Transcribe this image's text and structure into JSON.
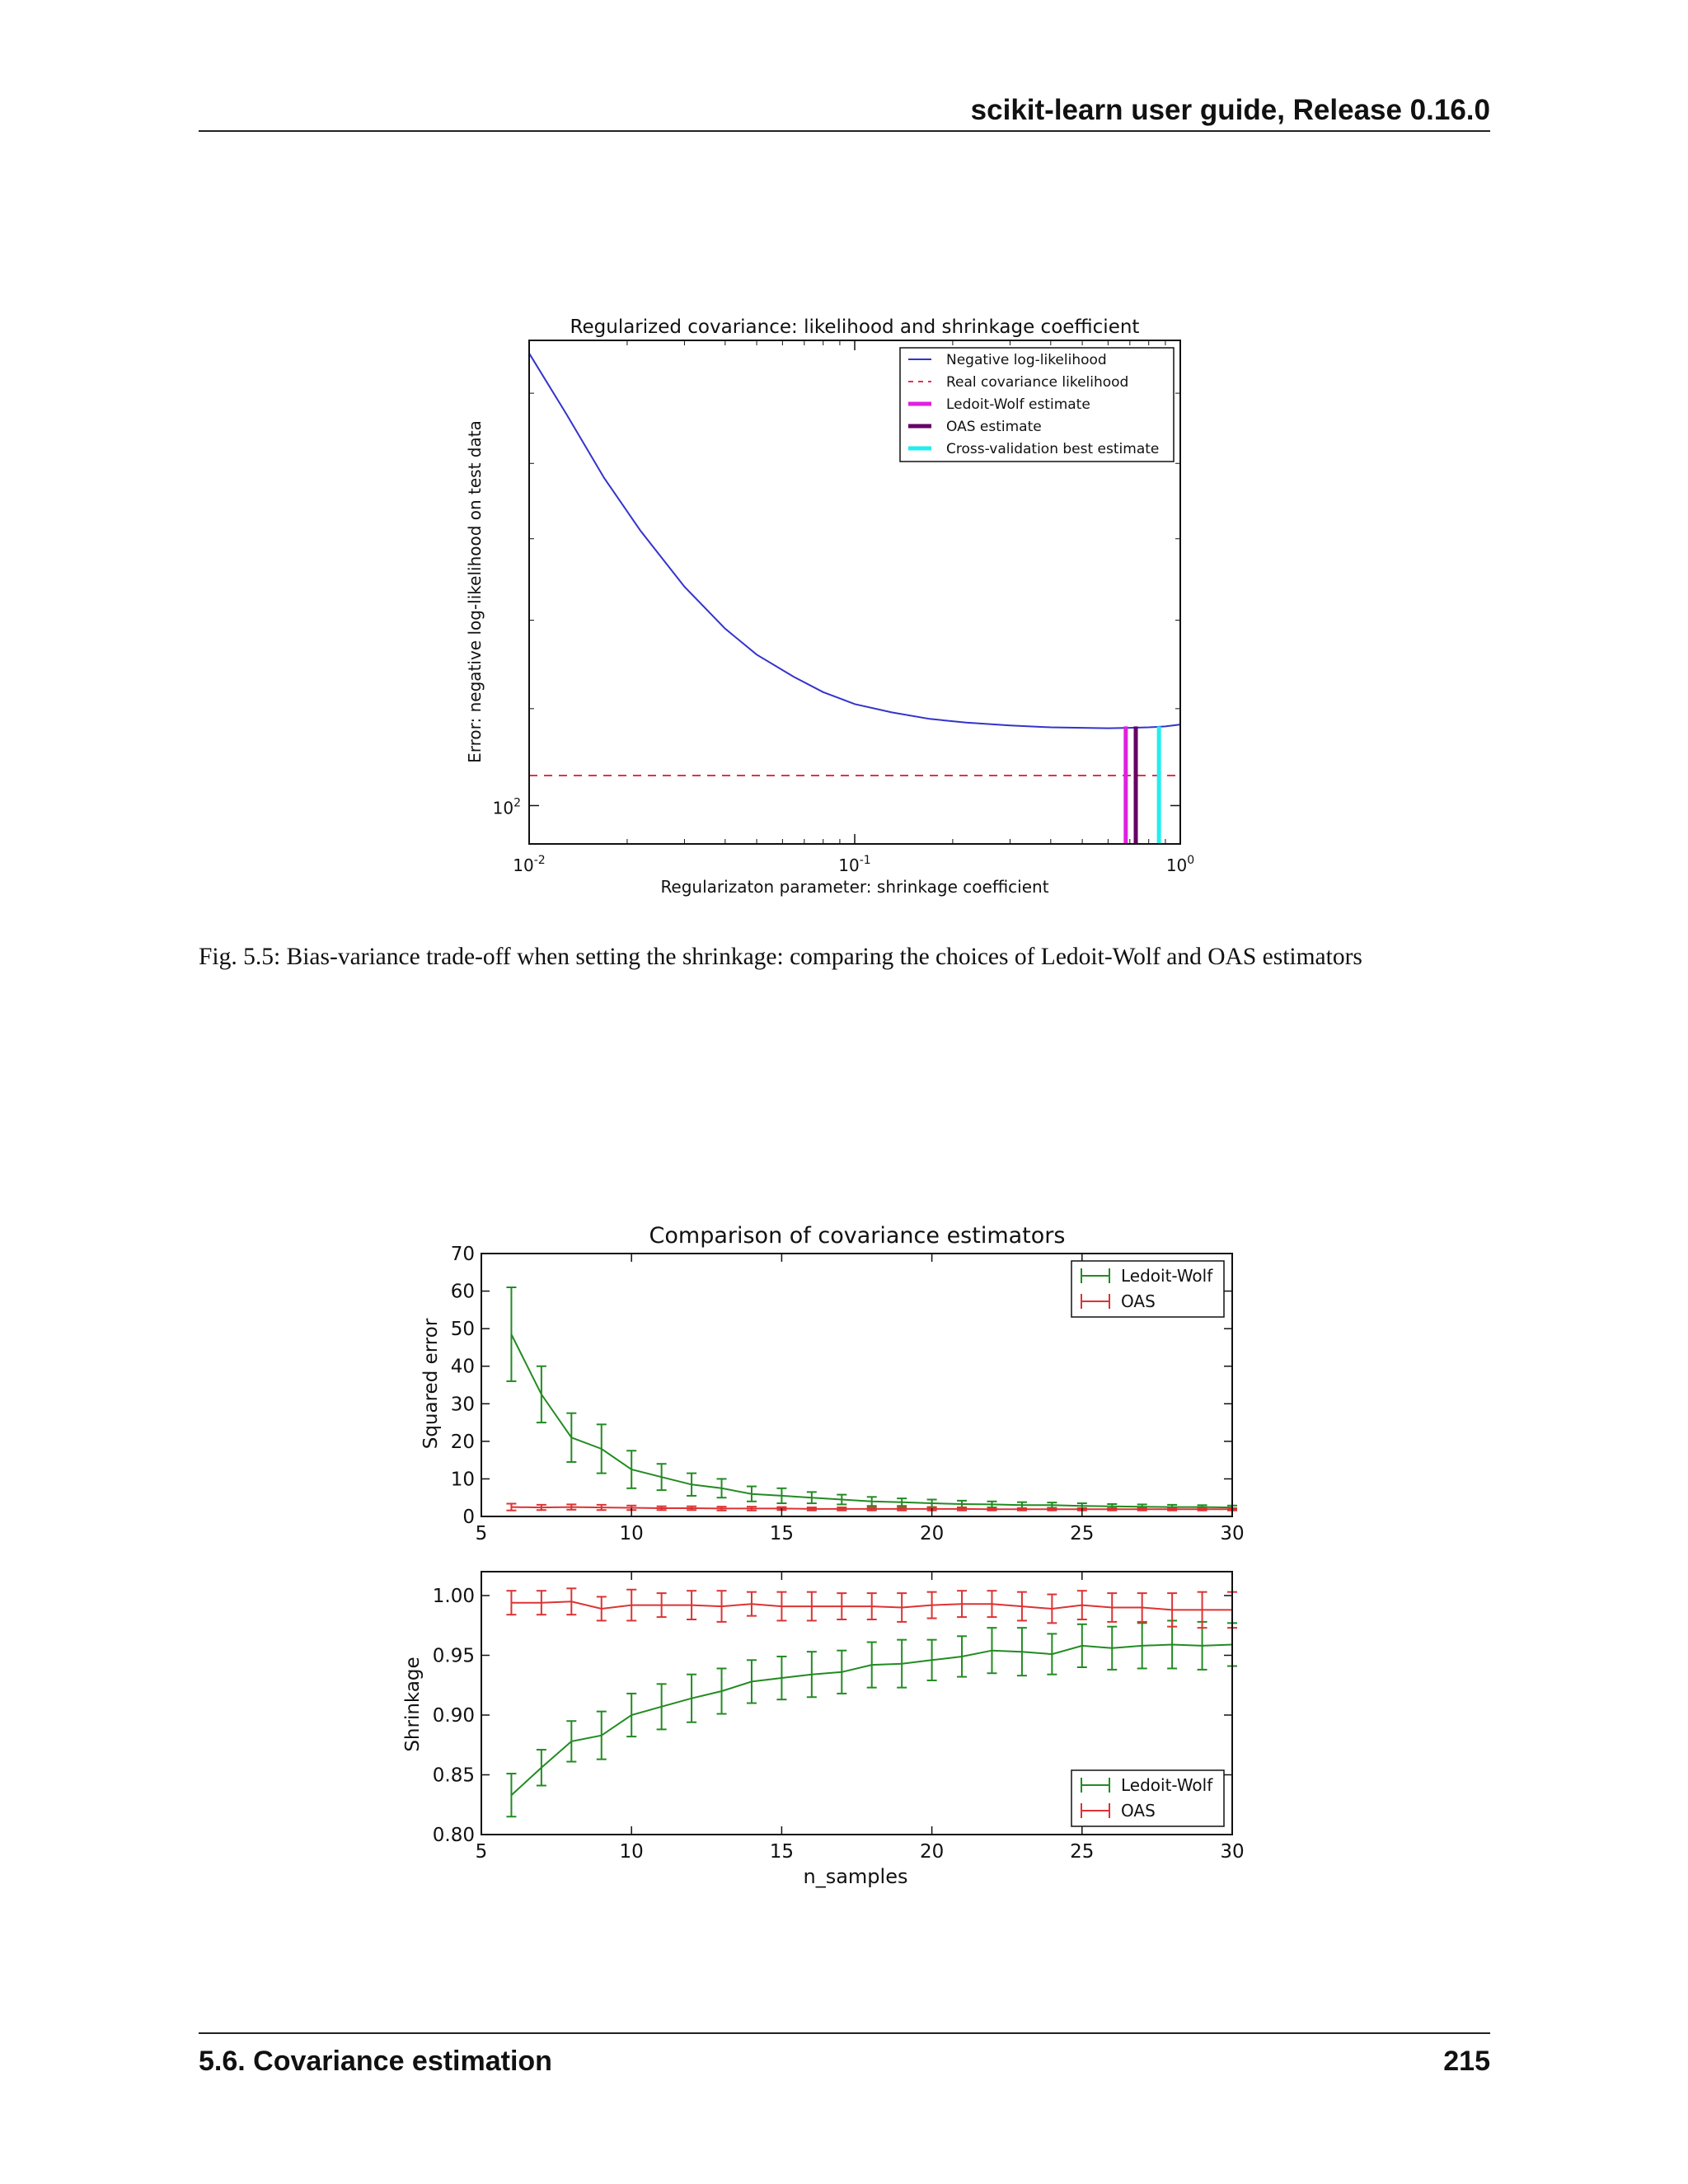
{
  "header": {
    "title": "scikit-learn user guide, Release 0.16.0"
  },
  "figure1": {
    "caption": "Fig. 5.5: Bias-variance trade-off when setting the shrinkage: comparing the choices of Ledoit-Wolf and OAS estimators"
  },
  "footer": {
    "section": "5.6. Covariance estimation",
    "page_number": "215"
  },
  "colors": {
    "neg_loglik": "#3333cc",
    "real_cov": "#dd3355",
    "ledoit_wolf_vline": "#e020e0",
    "oas_vline": "#660066",
    "cv_vline": "#22eeee",
    "ledoit_wolf_series": "#228b22",
    "oas_series": "#dd3333"
  },
  "chart_data": [
    {
      "type": "line",
      "title": "Regularized covariance: likelihood and shrinkage coefficient",
      "xlabel": "Regularizaton parameter: shrinkage coefficient",
      "ylabel": "Error: negative log-likelihood on test data",
      "x_scale": "log",
      "y_scale": "log",
      "xlim": [
        0.01,
        1.0
      ],
      "x_ticks": [
        {
          "base": "10",
          "exp": "-2",
          "value": 0.01
        },
        {
          "base": "10",
          "exp": "-1",
          "value": 0.1
        },
        {
          "base": "10",
          "exp": "0",
          "value": 1.0
        }
      ],
      "y_ticks": [
        {
          "base": "10",
          "exp": "2",
          "value": 100
        }
      ],
      "grid": false,
      "legend_position": "top-right",
      "series": [
        {
          "name": "Negative log-likelihood",
          "style": "solid",
          "x": [
            0.01,
            0.013,
            0.017,
            0.022,
            0.03,
            0.04,
            0.05,
            0.065,
            0.08,
            0.1,
            0.13,
            0.17,
            0.22,
            0.3,
            0.4,
            0.5,
            0.6,
            0.7,
            0.8,
            0.9,
            1.0
          ],
          "y": [
            156,
            147,
            138,
            131,
            124,
            119,
            116,
            113.5,
            111.8,
            110.5,
            109.6,
            108.9,
            108.5,
            108.2,
            108.0,
            107.95,
            107.9,
            107.95,
            108.0,
            108.1,
            108.3
          ]
        },
        {
          "name": "Real covariance likelihood",
          "style": "dashed",
          "y_const": 103
        }
      ],
      "vertical_lines": [
        {
          "name": "Ledoit-Wolf estimate",
          "x": 0.68
        },
        {
          "name": "OAS estimate",
          "x": 0.73
        },
        {
          "name": "Cross-validation best estimate",
          "x": 0.86
        }
      ]
    },
    {
      "type": "line",
      "title": "Comparison of covariance estimators",
      "xlabel": "",
      "ylabel": "Squared error",
      "xlim": [
        5,
        30
      ],
      "ylim": [
        0,
        70
      ],
      "x_ticks": [
        5,
        10,
        15,
        20,
        25,
        30
      ],
      "y_ticks": [
        0,
        10,
        20,
        30,
        40,
        50,
        60,
        70
      ],
      "grid": false,
      "legend_position": "top-right",
      "error_bars": true,
      "x": [
        6,
        7,
        8,
        9,
        10,
        11,
        12,
        13,
        14,
        15,
        16,
        17,
        18,
        19,
        20,
        21,
        22,
        23,
        24,
        25,
        26,
        27,
        28,
        29,
        30
      ],
      "series": [
        {
          "name": "Ledoit-Wolf",
          "values": [
            48.5,
            32.5,
            21.0,
            18.0,
            12.5,
            10.5,
            8.5,
            7.5,
            6.0,
            5.5,
            5.0,
            4.5,
            4.0,
            3.8,
            3.5,
            3.3,
            3.2,
            3.0,
            3.0,
            2.8,
            2.7,
            2.6,
            2.5,
            2.5,
            2.4
          ],
          "errors": [
            12.5,
            7.5,
            6.5,
            6.5,
            5.0,
            3.5,
            3.0,
            2.5,
            2.0,
            2.0,
            1.5,
            1.3,
            1.2,
            1.0,
            1.0,
            0.9,
            0.8,
            0.8,
            0.7,
            0.7,
            0.6,
            0.6,
            0.6,
            0.5,
            0.5
          ]
        },
        {
          "name": "OAS",
          "values": [
            2.5,
            2.4,
            2.5,
            2.4,
            2.3,
            2.2,
            2.2,
            2.1,
            2.1,
            2.1,
            2.0,
            2.0,
            2.0,
            2.0,
            2.0,
            2.0,
            1.9,
            1.9,
            1.9,
            1.9,
            1.9,
            1.9,
            1.9,
            1.9,
            1.9
          ],
          "errors": [
            0.9,
            0.7,
            0.7,
            0.7,
            0.6,
            0.5,
            0.5,
            0.5,
            0.5,
            0.4,
            0.4,
            0.4,
            0.4,
            0.4,
            0.4,
            0.4,
            0.3,
            0.3,
            0.3,
            0.3,
            0.3,
            0.3,
            0.3,
            0.3,
            0.3
          ]
        }
      ]
    },
    {
      "type": "line",
      "title": "",
      "xlabel": "n_samples",
      "ylabel": "Shrinkage",
      "xlim": [
        5,
        30
      ],
      "ylim": [
        0.8,
        1.02
      ],
      "x_ticks": [
        5,
        10,
        15,
        20,
        25,
        30
      ],
      "y_ticks": [
        "0.80",
        "0.85",
        "0.90",
        "0.95",
        "1.00"
      ],
      "grid": false,
      "legend_position": "bottom-right",
      "error_bars": true,
      "x": [
        6,
        7,
        8,
        9,
        10,
        11,
        12,
        13,
        14,
        15,
        16,
        17,
        18,
        19,
        20,
        21,
        22,
        23,
        24,
        25,
        26,
        27,
        28,
        29,
        30
      ],
      "series": [
        {
          "name": "Ledoit-Wolf",
          "values": [
            0.833,
            0.856,
            0.878,
            0.883,
            0.9,
            0.907,
            0.914,
            0.92,
            0.928,
            0.931,
            0.934,
            0.936,
            0.942,
            0.943,
            0.946,
            0.949,
            0.954,
            0.953,
            0.951,
            0.958,
            0.956,
            0.958,
            0.959,
            0.958,
            0.959
          ],
          "errors": [
            0.018,
            0.015,
            0.017,
            0.02,
            0.018,
            0.019,
            0.02,
            0.019,
            0.018,
            0.018,
            0.019,
            0.018,
            0.019,
            0.02,
            0.017,
            0.017,
            0.019,
            0.02,
            0.017,
            0.018,
            0.018,
            0.019,
            0.02,
            0.02,
            0.018
          ]
        },
        {
          "name": "OAS",
          "values": [
            0.994,
            0.994,
            0.995,
            0.989,
            0.992,
            0.992,
            0.992,
            0.991,
            0.993,
            0.991,
            0.991,
            0.991,
            0.991,
            0.99,
            0.992,
            0.993,
            0.993,
            0.991,
            0.989,
            0.992,
            0.99,
            0.99,
            0.988,
            0.988,
            0.988
          ],
          "errors": [
            0.01,
            0.01,
            0.011,
            0.01,
            0.013,
            0.01,
            0.012,
            0.013,
            0.01,
            0.012,
            0.012,
            0.011,
            0.011,
            0.012,
            0.011,
            0.011,
            0.011,
            0.012,
            0.012,
            0.012,
            0.012,
            0.012,
            0.014,
            0.015,
            0.015
          ]
        }
      ]
    }
  ]
}
